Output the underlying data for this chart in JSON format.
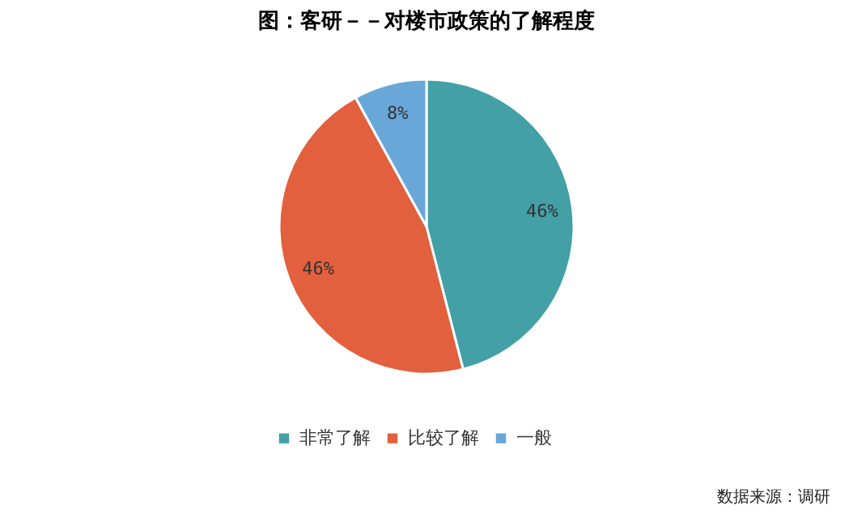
{
  "chart_data": {
    "type": "pie",
    "title": "图：客研－－对楼市政策的了解程度",
    "categories": [
      "非常了解",
      "比较了解",
      "一般"
    ],
    "values": [
      46,
      46,
      8
    ],
    "colors": [
      "#42a0a6",
      "#e2603d",
      "#69a7d8"
    ],
    "value_labels": [
      "46%",
      "46%",
      "8%"
    ],
    "legend": "bottom",
    "annotations": [
      "数据来源：调研"
    ]
  }
}
